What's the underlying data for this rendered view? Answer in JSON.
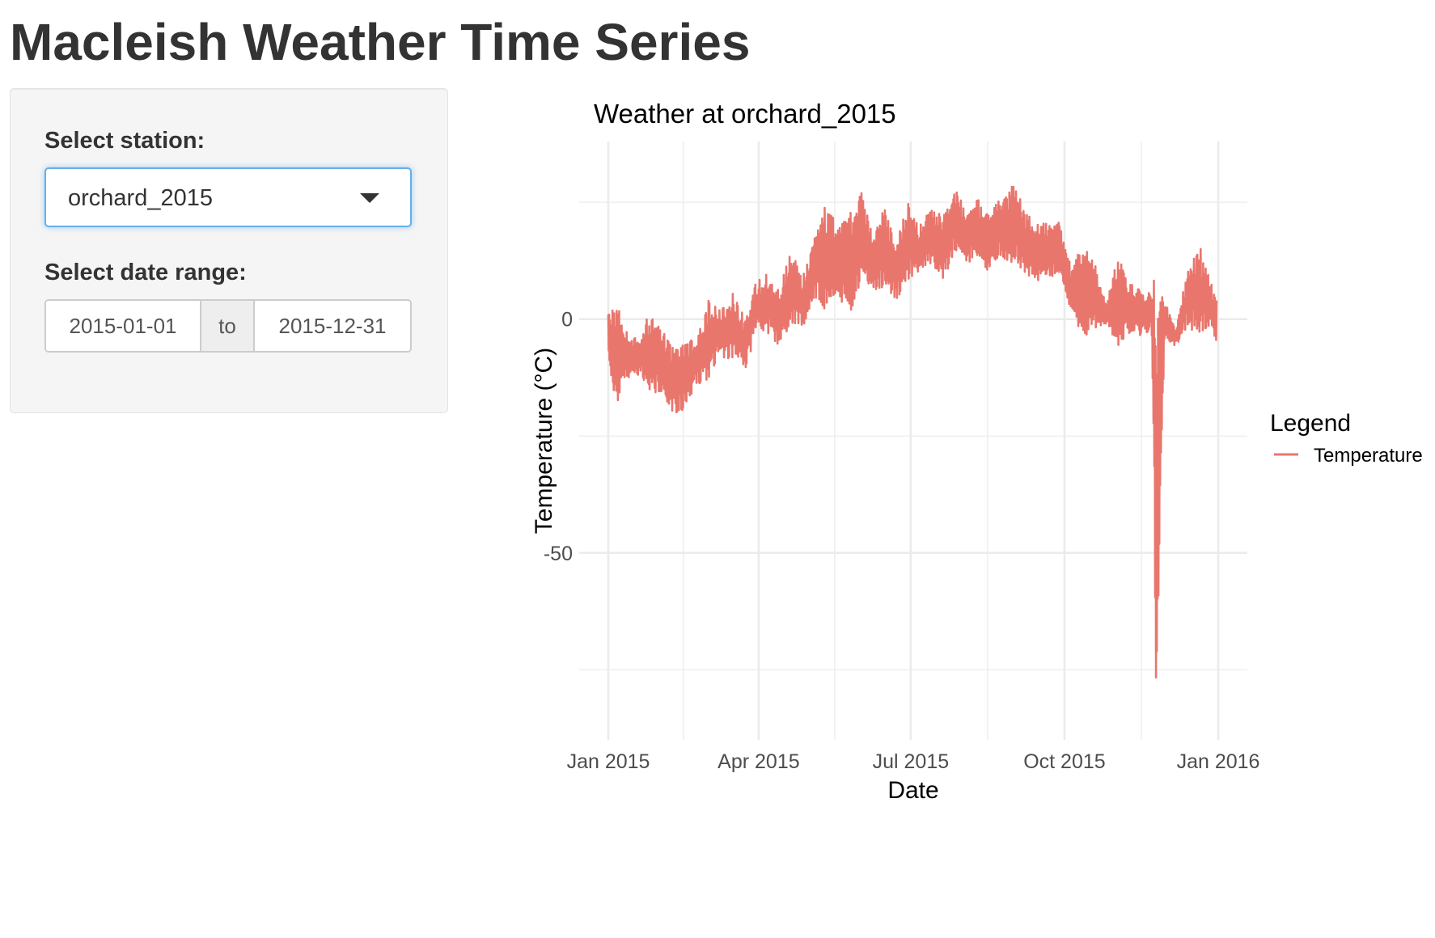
{
  "page": {
    "title": "Macleish Weather Time Series"
  },
  "sidebar": {
    "station_label": "Select station:",
    "station_value": "orchard_2015",
    "date_range_label": "Select date range:",
    "date_start": "2015-01-01",
    "date_separator": "to",
    "date_end": "2015-12-31"
  },
  "colors": {
    "series": "#E8766D",
    "grid": "#EBEBEB"
  },
  "chart_data": {
    "type": "line",
    "title": "Weather at orchard_2015",
    "xlabel": "Date",
    "ylabel": "Temperature (°C)",
    "xlim": [
      "2015-01-01",
      "2015-12-31"
    ],
    "ylim": [
      -90,
      38
    ],
    "x_ticks": [
      {
        "date": "2015-01-01",
        "label": "Jan 2015"
      },
      {
        "date": "2015-04-01",
        "label": "Apr 2015"
      },
      {
        "date": "2015-07-01",
        "label": "Jul 2015"
      },
      {
        "date": "2015-10-01",
        "label": "Oct 2015"
      },
      {
        "date": "2016-01-01",
        "label": "Jan 2016"
      }
    ],
    "y_ticks": [
      {
        "value": 0,
        "label": "0"
      },
      {
        "value": -50,
        "label": "-50"
      }
    ],
    "grid": true,
    "legend": {
      "title": "Legend",
      "position": "right",
      "entries": [
        "Temperature"
      ]
    },
    "series": [
      {
        "name": "Temperature",
        "x": [
          "2015-01-01",
          "2015-01-06",
          "2015-01-12",
          "2015-01-19",
          "2015-01-26",
          "2015-02-02",
          "2015-02-09",
          "2015-02-16",
          "2015-02-23",
          "2015-03-02",
          "2015-03-09",
          "2015-03-16",
          "2015-03-23",
          "2015-03-30",
          "2015-04-06",
          "2015-04-13",
          "2015-04-20",
          "2015-04-27",
          "2015-05-04",
          "2015-05-11",
          "2015-05-18",
          "2015-05-25",
          "2015-06-01",
          "2015-06-08",
          "2015-06-15",
          "2015-06-22",
          "2015-06-29",
          "2015-07-06",
          "2015-07-13",
          "2015-07-20",
          "2015-07-27",
          "2015-08-03",
          "2015-08-10",
          "2015-08-17",
          "2015-08-24",
          "2015-08-31",
          "2015-09-07",
          "2015-09-14",
          "2015-09-21",
          "2015-09-28",
          "2015-10-05",
          "2015-10-12",
          "2015-10-19",
          "2015-10-26",
          "2015-11-02",
          "2015-11-09",
          "2015-11-16",
          "2015-11-22",
          "2015-11-24",
          "2015-11-25",
          "2015-11-27",
          "2015-11-30",
          "2015-12-07",
          "2015-12-14",
          "2015-12-21",
          "2015-12-28",
          "2015-12-31"
        ],
        "high": [
          1,
          3,
          -2,
          -4,
          2,
          -2,
          -6,
          -5,
          -4,
          4,
          2,
          6,
          1,
          8,
          10,
          6,
          15,
          9,
          17,
          25,
          20,
          22,
          28,
          18,
          24,
          16,
          25,
          20,
          24,
          22,
          28,
          24,
          26,
          23,
          26,
          29,
          24,
          20,
          22,
          21,
          11,
          16,
          12,
          3,
          14,
          8,
          6,
          6,
          10,
          2,
          8,
          4,
          -2,
          12,
          16,
          8,
          4
        ],
        "low": [
          -10,
          -18,
          -14,
          -12,
          -16,
          -16,
          -21,
          -19,
          -14,
          -13,
          -8,
          -9,
          -12,
          -4,
          -3,
          -6,
          -1,
          -2,
          4,
          2,
          6,
          0,
          8,
          6,
          7,
          4,
          8,
          10,
          12,
          8,
          14,
          12,
          12,
          10,
          13,
          12,
          10,
          8,
          8,
          9,
          2,
          -4,
          -2,
          -1,
          -6,
          -3,
          -4,
          -2,
          -50,
          -90,
          -50,
          -4,
          -6,
          -2,
          -4,
          -2,
          -6
        ]
      }
    ]
  }
}
